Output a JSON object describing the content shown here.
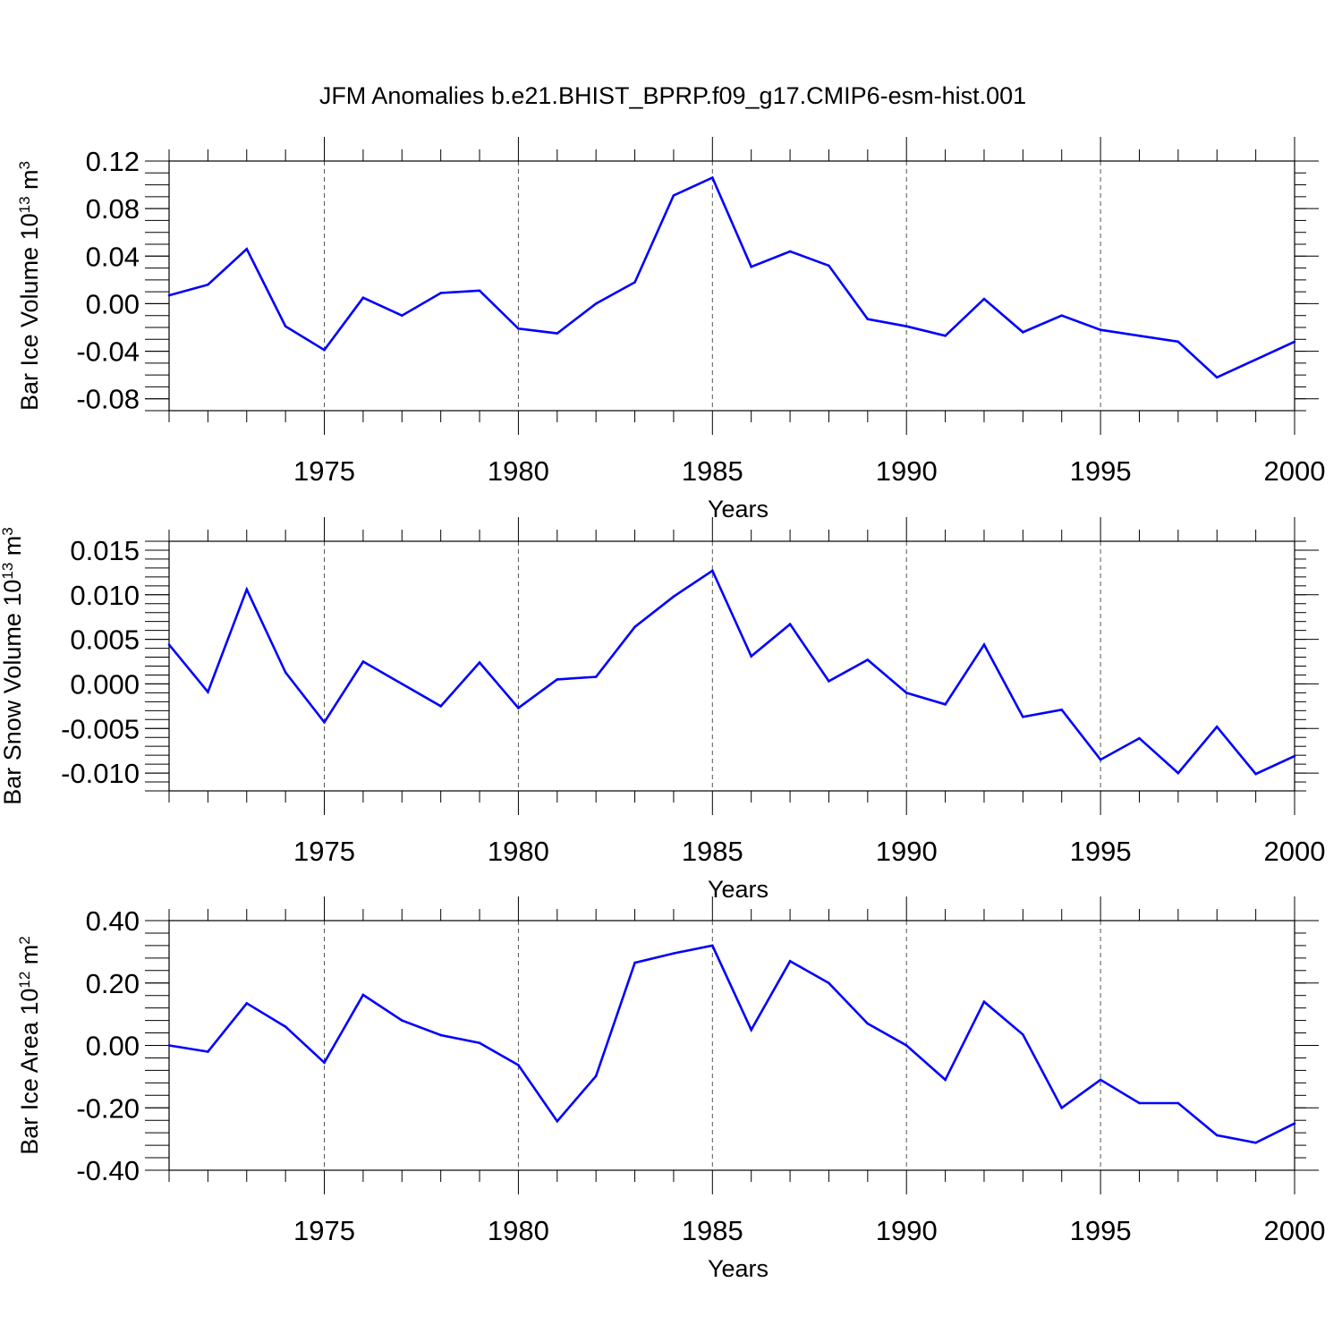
{
  "title": "JFM Anomalies b.e21.BHIST_BPRP.f09_g17.CMIP6-esm-hist.001",
  "colors": {
    "line": "#0000ff",
    "axis": "#000000",
    "grid": "#555555"
  },
  "chart_data": [
    {
      "type": "line",
      "ylabel_main": "Bar Ice Volume 10",
      "ylabel_exp": "13",
      "ylabel_unit": " m",
      "ylabel_unit_exp": "3",
      "xlabel": "Years",
      "xlim": [
        1971,
        2000
      ],
      "ylim": [
        -0.09,
        0.12
      ],
      "yticks": [
        -0.08,
        -0.04,
        0.0,
        0.04,
        0.08,
        0.12
      ],
      "ytick_labels": [
        "-0.08",
        "-0.04",
        "0.00",
        "0.04",
        "0.08",
        "0.12"
      ],
      "yminor": 0.01,
      "xticks": [
        1975,
        1980,
        1985,
        1990,
        1995,
        2000
      ],
      "xtick_labels": [
        "1975",
        "1980",
        "1985",
        "1990",
        "1995",
        "2000"
      ],
      "grid_x": [
        1975,
        1980,
        1985,
        1990,
        1995
      ],
      "x": [
        1971,
        1972,
        1973,
        1974,
        1975,
        1976,
        1977,
        1978,
        1979,
        1980,
        1981,
        1982,
        1983,
        1984,
        1985,
        1986,
        1987,
        1988,
        1989,
        1990,
        1991,
        1992,
        1993,
        1994,
        1995,
        1996,
        1997,
        1998,
        1999,
        2000
      ],
      "values": [
        0.007,
        0.016,
        0.046,
        -0.019,
        -0.039,
        0.005,
        -0.01,
        0.009,
        0.011,
        -0.021,
        -0.025,
        0.0,
        0.018,
        0.091,
        0.106,
        0.031,
        0.044,
        0.032,
        -0.013,
        -0.019,
        -0.027,
        0.004,
        -0.024,
        -0.01,
        -0.022,
        -0.027,
        -0.032,
        -0.062,
        -0.047,
        -0.032
      ]
    },
    {
      "type": "line",
      "ylabel_main": "Bar Snow Volume 10",
      "ylabel_exp": "13",
      "ylabel_unit": " m",
      "ylabel_unit_exp": "3",
      "xlabel": "Years",
      "xlim": [
        1971,
        2000
      ],
      "ylim": [
        -0.012,
        0.016
      ],
      "yticks": [
        -0.01,
        -0.005,
        0.0,
        0.005,
        0.01,
        0.015
      ],
      "ytick_labels": [
        "-0.010",
        "-0.005",
        "0.000",
        "0.005",
        "0.010",
        "0.015"
      ],
      "yminor": 0.001,
      "xticks": [
        1975,
        1980,
        1985,
        1990,
        1995,
        2000
      ],
      "xtick_labels": [
        "1975",
        "1980",
        "1985",
        "1990",
        "1995",
        "2000"
      ],
      "grid_x": [
        1975,
        1980,
        1985,
        1990,
        1995
      ],
      "x": [
        1971,
        1972,
        1973,
        1974,
        1975,
        1976,
        1977,
        1978,
        1979,
        1980,
        1981,
        1982,
        1983,
        1984,
        1985,
        1986,
        1987,
        1988,
        1989,
        1990,
        1991,
        1992,
        1993,
        1994,
        1995,
        1996,
        1997,
        1998,
        1999,
        2000
      ],
      "values": [
        0.0044,
        -0.0009,
        0.0106,
        0.0013,
        -0.0043,
        0.0025,
        0.0,
        -0.0025,
        0.0024,
        -0.0027,
        0.0005,
        0.0008,
        0.0064,
        0.0098,
        0.0127,
        0.0031,
        0.0067,
        0.0003,
        0.0027,
        -0.001,
        -0.0023,
        0.0044,
        -0.0037,
        -0.0029,
        -0.0085,
        -0.0061,
        -0.01,
        -0.0048,
        -0.0101,
        -0.0081
      ]
    },
    {
      "type": "line",
      "ylabel_main": "Bar Ice Area 10",
      "ylabel_exp": "12",
      "ylabel_unit": " m",
      "ylabel_unit_exp": "2",
      "xlabel": "Years",
      "xlim": [
        1971,
        2000
      ],
      "ylim": [
        -0.4,
        0.4
      ],
      "yticks": [
        -0.4,
        -0.2,
        0.0,
        0.2,
        0.4
      ],
      "ytick_labels": [
        "-0.40",
        "-0.20",
        "0.00",
        "0.20",
        "0.40"
      ],
      "yminor": 0.04,
      "xticks": [
        1975,
        1980,
        1985,
        1990,
        1995,
        2000
      ],
      "xtick_labels": [
        "1975",
        "1980",
        "1985",
        "1990",
        "1995",
        "2000"
      ],
      "grid_x": [
        1975,
        1980,
        1985,
        1990,
        1995
      ],
      "x": [
        1971,
        1972,
        1973,
        1974,
        1975,
        1976,
        1977,
        1978,
        1979,
        1980,
        1981,
        1982,
        1983,
        1984,
        1985,
        1986,
        1987,
        1988,
        1989,
        1990,
        1991,
        1992,
        1993,
        1994,
        1995,
        1996,
        1997,
        1998,
        1999,
        2000
      ],
      "values": [
        0.0,
        -0.02,
        0.135,
        0.06,
        -0.055,
        0.162,
        0.08,
        0.033,
        0.008,
        -0.063,
        -0.243,
        -0.098,
        0.265,
        0.295,
        0.32,
        0.05,
        0.27,
        0.2,
        0.07,
        0.0,
        -0.11,
        0.14,
        0.035,
        -0.2,
        -0.11,
        -0.185,
        -0.185,
        -0.288,
        -0.312,
        -0.25
      ]
    }
  ]
}
